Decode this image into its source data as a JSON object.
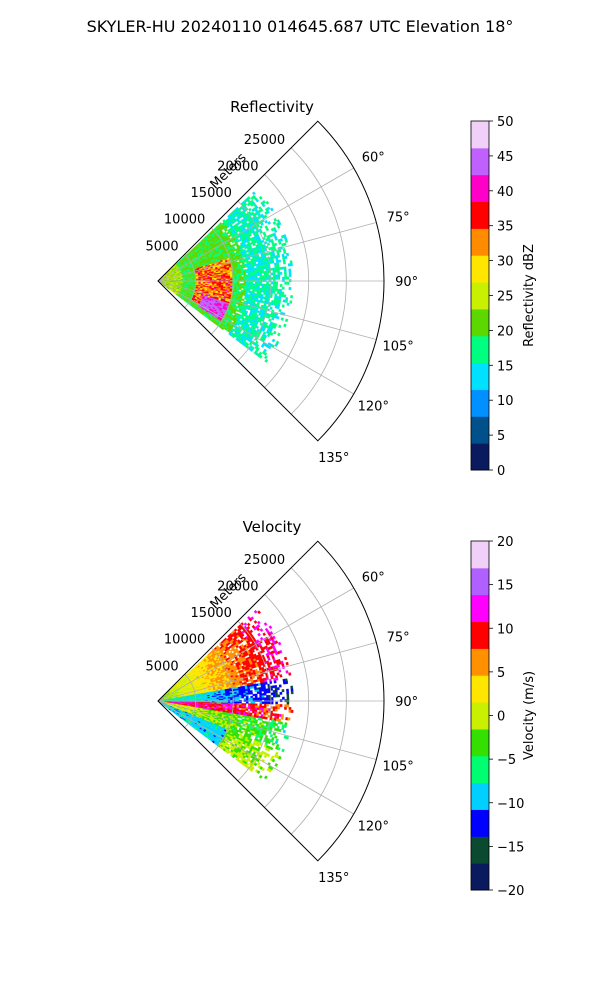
{
  "figure": {
    "title": "SKYLER-HU  20240110  014645.687 UTC Elevation 18°"
  },
  "chart_data": [
    {
      "type": "polar-sector",
      "title": "Reflectivity",
      "radial_label": "Meters",
      "theta_range_deg": [
        45,
        135
      ],
      "radial_range_m": [
        0,
        30000
      ],
      "radial_ticks": [
        5000,
        10000,
        15000,
        20000,
        25000
      ],
      "radial_tick_labels": [
        "5000",
        "10000",
        "15000",
        "20000",
        "25000"
      ],
      "theta_ticks_deg": [
        60,
        75,
        90,
        105,
        120,
        135
      ],
      "theta_tick_labels": [
        "60°",
        "75°",
        "90°",
        "105°",
        "120°",
        "135°"
      ],
      "grid": true,
      "data_extent_m": 18000,
      "colorbar": {
        "label": "Reflectivity dBZ",
        "range": [
          0,
          50
        ],
        "ticks": [
          0,
          5,
          10,
          15,
          20,
          25,
          30,
          35,
          40,
          45,
          50
        ],
        "tick_labels": [
          "0",
          "5",
          "10",
          "15",
          "20",
          "25",
          "30",
          "35",
          "40",
          "45",
          "50"
        ],
        "colormap": [
          "#0a1a5e",
          "#00508c",
          "#0090ff",
          "#00e0ff",
          "#00ff80",
          "#5cd800",
          "#c8f000",
          "#ffe600",
          "#ff8c00",
          "#ff0000",
          "#ff00c8",
          "#c060ff",
          "#f0d0f8"
        ]
      }
    },
    {
      "type": "polar-sector",
      "title": "Velocity",
      "radial_label": "Meters",
      "theta_range_deg": [
        45,
        135
      ],
      "radial_range_m": [
        0,
        30000
      ],
      "radial_ticks": [
        5000,
        10000,
        15000,
        20000,
        25000
      ],
      "radial_tick_labels": [
        "5000",
        "10000",
        "15000",
        "20000",
        "25000"
      ],
      "theta_ticks_deg": [
        60,
        75,
        90,
        105,
        120,
        135
      ],
      "theta_tick_labels": [
        "60°",
        "75°",
        "90°",
        "105°",
        "120°",
        "135°"
      ],
      "grid": true,
      "data_extent_m": 18000,
      "colorbar": {
        "label": "Velocity (m/s)",
        "range": [
          -20,
          20
        ],
        "ticks": [
          -20,
          -15,
          -10,
          -5,
          0,
          5,
          10,
          15,
          20
        ],
        "tick_labels": [
          "−20",
          "−15",
          "−10",
          "−5",
          "0",
          "5",
          "10",
          "15",
          "20"
        ],
        "colormap": [
          "#0a1a5e",
          "#0a4a30",
          "#0000ff",
          "#00d0ff",
          "#00ff70",
          "#33e000",
          "#c8f000",
          "#ffe600",
          "#ff9000",
          "#ff0000",
          "#ff00ff",
          "#b060ff",
          "#f0d0f8"
        ]
      }
    }
  ]
}
